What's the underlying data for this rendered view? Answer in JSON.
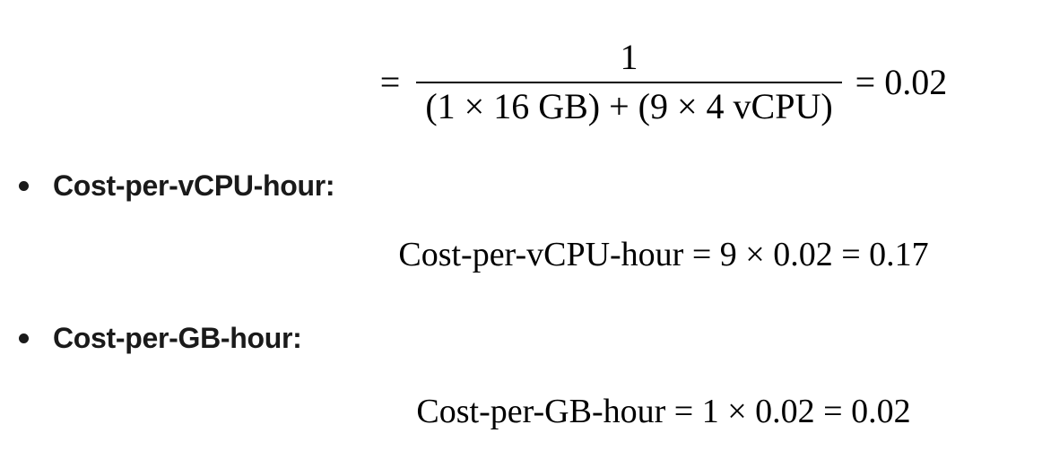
{
  "page": {
    "background": "#ffffff",
    "math_color": "#000000",
    "label_color": "#1a1a1a"
  },
  "content": {
    "equation1": {
      "lhs": "=",
      "fraction": {
        "numerator": "1",
        "denominator": "(1 × 16 GB) + (9 × 4 vCPU)"
      },
      "rhs": "= 0.02"
    },
    "items": [
      {
        "label": "Cost-per-vCPU-hour:",
        "equation": "Cost-per-vCPU-hour = 9 × 0.02 = 0.17"
      },
      {
        "label": "Cost-per-GB-hour:",
        "equation": "Cost-per-GB-hour = 1 × 0.02 = 0.02"
      }
    ]
  }
}
